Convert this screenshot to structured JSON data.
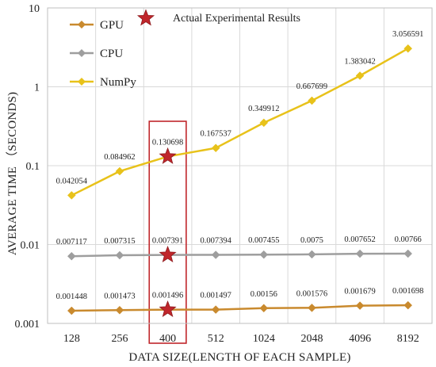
{
  "chart_data": {
    "type": "line",
    "y_scale": "log",
    "ylim": [
      0.001,
      10
    ],
    "y_ticks": [
      {
        "value": 0.001,
        "label": "0.001"
      },
      {
        "value": 0.01,
        "label": "0.01"
      },
      {
        "value": 0.1,
        "label": "0.1"
      },
      {
        "value": 1,
        "label": "1"
      },
      {
        "value": 10,
        "label": "10"
      }
    ],
    "categories": [
      "128",
      "256",
      "400",
      "512",
      "1024",
      "2048",
      "4096",
      "8192"
    ],
    "xlabel": "DATA SIZE(LENGTH OF EACH SAMPLE)",
    "ylabel": "AVERAGE TIME （SECONDS)",
    "grid": true,
    "legend_position": "top-left",
    "series": [
      {
        "name": "GPU",
        "color": "#C98A2E",
        "marker": "diamond",
        "values": [
          0.001448,
          0.001473,
          0.001496,
          0.001497,
          0.00156,
          0.001576,
          0.001679,
          0.001698
        ],
        "labels": [
          "0.001448",
          "0.001473",
          "0.001496",
          "0.001497",
          "0.00156",
          "0.001576",
          "0.001679",
          "0.001698"
        ]
      },
      {
        "name": "CPU",
        "color": "#9E9E9E",
        "marker": "diamond",
        "values": [
          0.007117,
          0.007315,
          0.007391,
          0.007394,
          0.007455,
          0.0075,
          0.007652,
          0.00766
        ],
        "labels": [
          "0.007117",
          "0.007315",
          "0.007391",
          "0.007394",
          "0.007455",
          "0.0075",
          "0.007652",
          "0.00766"
        ]
      },
      {
        "name": "NumPy",
        "color": "#E8C21A",
        "marker": "diamond",
        "values": [
          0.042054,
          0.084962,
          0.130698,
          0.167537,
          0.349912,
          0.667699,
          1.383042,
          3.056591
        ],
        "labels": [
          "0.042054",
          "0.084962",
          "0.130698",
          "0.167537",
          "0.349912",
          "0.667699",
          "1.383042",
          "3.056591"
        ]
      }
    ],
    "highlight": {
      "category_index": 2,
      "marker": "star",
      "marker_color": "#C0262B",
      "box_color": "#C0262B",
      "legend_label": "Actual Experimental Results"
    }
  }
}
